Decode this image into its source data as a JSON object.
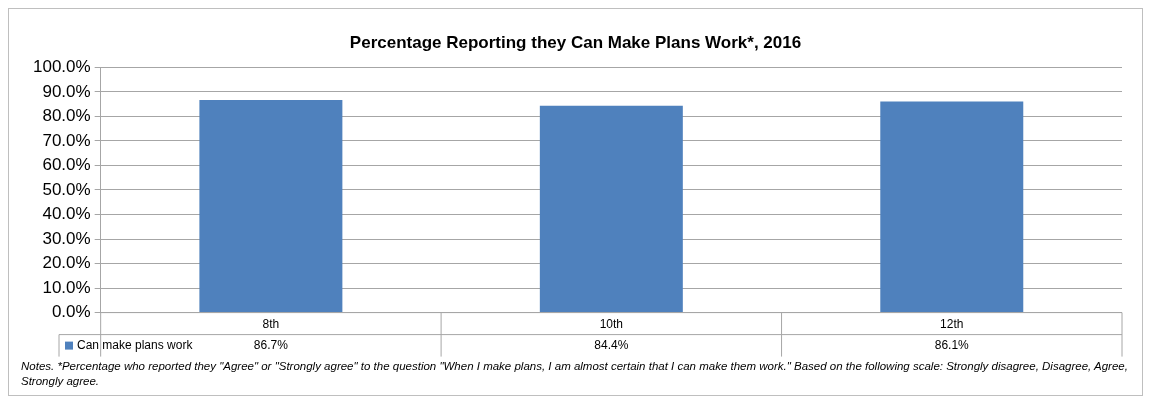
{
  "chart_data": {
    "type": "bar",
    "title": "Percentage Reporting they Can Make Plans Work*, 2016",
    "categories": [
      "8th",
      "10th",
      "12th"
    ],
    "series": [
      {
        "name": "Can make plans work",
        "color": "#4f81bd",
        "values": [
          86.7,
          84.4,
          86.1
        ],
        "value_labels": [
          "86.7%",
          "84.4%",
          "86.1%"
        ]
      }
    ],
    "ylim": [
      0,
      100
    ],
    "yticks": [
      {
        "value": 0,
        "label": "0.0%"
      },
      {
        "value": 10,
        "label": "10.0%"
      },
      {
        "value": 20,
        "label": "20.0%"
      },
      {
        "value": 30,
        "label": "30.0%"
      },
      {
        "value": 40,
        "label": "40.0%"
      },
      {
        "value": 50,
        "label": "50.0%"
      },
      {
        "value": 60,
        "label": "60.0%"
      },
      {
        "value": 70,
        "label": "70.0%"
      },
      {
        "value": 80,
        "label": "80.0%"
      },
      {
        "value": 90,
        "label": "90.0%"
      },
      {
        "value": 100,
        "label": "100.0%"
      }
    ],
    "grid": "y",
    "annotations": [
      "Notes. *Percentage who reported they \"Agree\" or \"Strongly agree\" to the question \"When I make plans, I am almost certain that I can make them work.\" Based on the following scale: Strongly disagree, Disagree, Agree, Strongly agree."
    ]
  }
}
